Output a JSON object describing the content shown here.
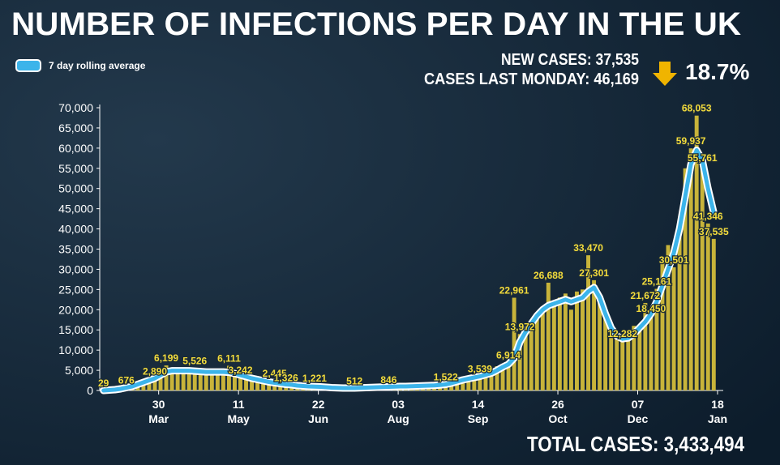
{
  "chart_data": {
    "type": "bar",
    "title": "NUMBER OF INFECTIONS PER DAY IN THE UK",
    "new_cases": "NEW CASES: 37,535",
    "last_monday": "CASES LAST MONDAY: 46,169",
    "change": "18.7%",
    "total": "TOTAL CASES: 3,433,494",
    "color": "#c8b43a",
    "x": [
      0,
      3,
      6,
      9,
      12,
      15,
      18,
      21,
      24,
      27,
      30,
      33,
      36,
      39,
      42,
      45,
      48,
      51,
      54,
      57,
      60,
      63,
      66,
      69,
      72,
      75,
      78,
      81,
      84,
      87,
      90,
      93,
      96,
      99,
      102,
      105,
      108,
      111,
      114,
      117,
      120,
      123,
      126,
      129,
      132,
      135,
      138,
      141,
      144,
      147,
      150,
      153,
      156,
      159,
      162,
      165,
      168,
      171,
      174,
      177,
      180,
      183,
      186,
      189,
      192,
      195,
      198,
      201,
      204,
      207,
      210,
      213,
      216,
      219,
      222,
      225,
      228,
      231,
      234,
      237,
      240,
      243,
      246,
      249,
      252,
      255,
      258,
      261,
      264,
      267,
      270,
      273,
      276,
      279,
      282,
      285,
      288,
      291,
      294,
      297,
      300,
      303,
      306,
      309,
      312,
      315,
      318,
      321
    ],
    "values": [
      29,
      60,
      160,
      300,
      676,
      1100,
      1700,
      2200,
      2500,
      2890,
      4300,
      6199,
      4800,
      5200,
      4600,
      5000,
      5526,
      4500,
      4300,
      4900,
      4000,
      4700,
      6111,
      3900,
      3242,
      3400,
      2900,
      2700,
      2500,
      2000,
      2445,
      1600,
      1326,
      1500,
      1200,
      1100,
      1000,
      1221,
      900,
      700,
      650,
      600,
      550,
      650,
      512,
      700,
      800,
      750,
      850,
      900,
      846,
      1000,
      950,
      1100,
      1000,
      1200,
      1100,
      1300,
      1400,
      1200,
      1522,
      2000,
      2500,
      3000,
      2900,
      3300,
      3539,
      4300,
      4400,
      6000,
      6200,
      6914,
      22961,
      13972,
      15000,
      17000,
      19000,
      20000,
      26688,
      22000,
      23000,
      24000,
      20000,
      24500,
      25000,
      33470,
      27301,
      22000,
      18000,
      15000,
      13000,
      12282,
      14000,
      16000,
      15500,
      21672,
      18450,
      25161,
      33000,
      36000,
      30501,
      41000,
      55000,
      59937,
      68053,
      55761,
      41346,
      37535
    ],
    "value_labels": [
      "29",
      null,
      null,
      null,
      "676",
      null,
      null,
      null,
      null,
      "2,890",
      null,
      "6,199",
      null,
      null,
      null,
      null,
      "5,526",
      null,
      null,
      null,
      null,
      null,
      "6,111",
      null,
      "3,242",
      null,
      null,
      null,
      null,
      null,
      "2,445",
      null,
      "1,326",
      null,
      null,
      null,
      null,
      "1,221",
      null,
      null,
      null,
      null,
      null,
      null,
      "512",
      null,
      null,
      null,
      null,
      null,
      "846",
      null,
      null,
      null,
      null,
      null,
      null,
      null,
      null,
      null,
      "1,522",
      null,
      null,
      null,
      null,
      null,
      "3,539",
      null,
      null,
      null,
      null,
      "6,914",
      "22,961",
      "13,972",
      null,
      null,
      null,
      null,
      "26,688",
      null,
      null,
      null,
      null,
      null,
      null,
      "33,470",
      "27,301",
      null,
      null,
      null,
      null,
      "12,282",
      null,
      null,
      null,
      "21,672",
      "18,450",
      "25,161",
      null,
      null,
      "30,501",
      null,
      null,
      "59,937",
      "68,053",
      "55,761",
      "41,346",
      "37,535"
    ],
    "line": {
      "name": "7 day rolling average",
      "color": "#3cb4ea",
      "values": [
        0,
        100,
        200,
        400,
        700,
        1000,
        1500,
        2000,
        2500,
        3000,
        3800,
        4600,
        4900,
        4900,
        4900,
        4900,
        4800,
        4700,
        4600,
        4600,
        4600,
        4600,
        4500,
        4200,
        3800,
        3400,
        3000,
        2700,
        2400,
        2100,
        1900,
        1700,
        1500,
        1400,
        1200,
        1100,
        1000,
        950,
        900,
        800,
        700,
        650,
        600,
        600,
        600,
        650,
        700,
        750,
        800,
        850,
        900,
        950,
        1000,
        1000,
        1050,
        1100,
        1150,
        1200,
        1250,
        1350,
        1500,
        1800,
        2200,
        2600,
        2900,
        3200,
        3500,
        3900,
        4300,
        5000,
        5800,
        6500,
        8000,
        12000,
        14500,
        16500,
        18500,
        20000,
        21000,
        21500,
        22000,
        22500,
        22000,
        22500,
        23000,
        24500,
        25500,
        23000,
        19000,
        15500,
        13500,
        12800,
        13000,
        14000,
        15500,
        17000,
        19000,
        22000,
        26000,
        30000,
        34000,
        40000,
        48000,
        56000,
        59500,
        57000,
        50000,
        44000
      ]
    },
    "xlim": [
      -2,
      326
    ],
    "xticks": [
      {
        "value": 29,
        "label": "30"
      },
      {
        "value": 71,
        "label": "11"
      },
      {
        "value": 113,
        "label": "22"
      },
      {
        "value": 155,
        "label": "03"
      },
      {
        "value": 197,
        "label": "14"
      },
      {
        "value": 239,
        "label": "26"
      },
      {
        "value": 281,
        "label": "07"
      },
      {
        "value": 323,
        "label": "18"
      }
    ],
    "xtick_months": [
      "Mar",
      "May",
      "Jun",
      "Aug",
      "Sep",
      "Oct",
      "Dec",
      "Jan"
    ],
    "ylim": [
      0,
      70000
    ],
    "yticks": [
      0,
      {
        "value": 5000,
        "label": "5,000"
      },
      {
        "value": 10000,
        "label": "10,000"
      },
      {
        "value": 15000,
        "label": "15,000"
      },
      {
        "value": 20000,
        "label": "20,000"
      },
      {
        "value": 25000,
        "label": "25,000"
      },
      {
        "value": 30000,
        "label": "30,000"
      },
      {
        "value": 35000,
        "label": "35,000"
      },
      {
        "value": 40000,
        "label": "40,000"
      },
      {
        "value": 45000,
        "label": "45,000"
      },
      {
        "value": 50000,
        "label": "50,000"
      },
      {
        "value": 55000,
        "label": "55,000"
      },
      {
        "value": 60000,
        "label": "60,000"
      },
      {
        "value": 65000,
        "label": "65,000"
      },
      {
        "value": 70000,
        "label": "70,000"
      }
    ]
  }
}
